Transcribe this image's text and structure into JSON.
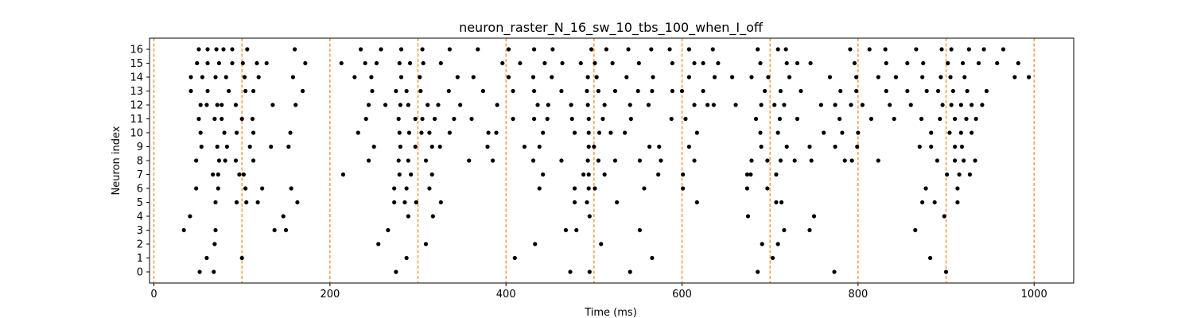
{
  "chart_data": {
    "type": "scatter",
    "title": "neuron_raster_N_16_sw_10_tbs_100_when_I_off",
    "xlabel": "Time (ms)",
    "ylabel": "Neuron index",
    "xlim": [
      -5,
      1045
    ],
    "ylim": [
      -0.8,
      16.8
    ],
    "xticks": [
      0,
      200,
      400,
      600,
      800,
      1000
    ],
    "yticks": [
      0,
      1,
      2,
      3,
      4,
      5,
      6,
      7,
      8,
      9,
      10,
      11,
      12,
      13,
      14,
      15,
      16
    ],
    "grid": false,
    "legend": "none",
    "marker_color": "#000000",
    "vline_color": "#ff7f0e",
    "vlines": [
      0,
      100,
      200,
      300,
      400,
      500,
      600,
      700,
      800,
      900,
      1000
    ],
    "series": [
      {
        "neuron": 0,
        "times": [
          52,
          68,
          275,
          473,
          495,
          541,
          686,
          773,
          900
        ]
      },
      {
        "neuron": 1,
        "times": [
          60,
          100,
          287,
          410,
          566,
          703,
          882
        ]
      },
      {
        "neuron": 2,
        "times": [
          69,
          255,
          309,
          433,
          508,
          691,
          709
        ]
      },
      {
        "neuron": 3,
        "times": [
          34,
          70,
          137,
          150,
          266,
          468,
          480,
          552,
          716,
          745,
          865
        ]
      },
      {
        "neuron": 4,
        "times": [
          41,
          147,
          289,
          317,
          495,
          675,
          750,
          898
        ]
      },
      {
        "neuron": 5,
        "times": [
          70,
          94,
          105,
          118,
          163,
          273,
          285,
          298,
          326,
          478,
          492,
          526,
          617,
          707,
          713,
          873,
          887,
          913
        ]
      },
      {
        "neuron": 6,
        "times": [
          48,
          73,
          104,
          123,
          156,
          273,
          287,
          313,
          438,
          478,
          494,
          501,
          557,
          601,
          674,
          697,
          877,
          913
        ]
      },
      {
        "neuron": 7,
        "times": [
          67,
          73,
          97,
          102,
          215,
          279,
          292,
          316,
          442,
          488,
          494,
          512,
          573,
          601,
          674,
          678,
          707,
          901,
          915,
          927
        ]
      },
      {
        "neuron": 8,
        "times": [
          48,
          74,
          81,
          93,
          113,
          244,
          278,
          289,
          309,
          358,
          385,
          431,
          463,
          493,
          505,
          524,
          552,
          576,
          614,
          679,
          697,
          712,
          728,
          747,
          785,
          793,
          823,
          890,
          910,
          920,
          933
        ]
      },
      {
        "neuron": 9,
        "times": [
          54,
          72,
          83,
          109,
          133,
          153,
          250,
          280,
          297,
          316,
          325,
          379,
          421,
          438,
          494,
          500,
          563,
          574,
          608,
          690,
          719,
          745,
          774,
          799,
          870,
          883,
          910,
          918
        ]
      },
      {
        "neuron": 10,
        "times": [
          53,
          80,
          94,
          113,
          155,
          232,
          279,
          290,
          304,
          313,
          336,
          380,
          389,
          442,
          478,
          494,
          506,
          519,
          535,
          617,
          689,
          709,
          761,
          782,
          800,
          883,
          904,
          917,
          929
        ]
      },
      {
        "neuron": 11,
        "times": [
          51,
          69,
          77,
          100,
          112,
          241,
          278,
          297,
          305,
          319,
          341,
          361,
          408,
          432,
          447,
          475,
          494,
          510,
          542,
          588,
          604,
          684,
          711,
          731,
          779,
          815,
          841,
          872,
          893,
          910,
          923,
          934
        ]
      },
      {
        "neuron": 12,
        "times": [
          53,
          60,
          72,
          77,
          93,
          135,
          161,
          244,
          263,
          280,
          289,
          311,
          323,
          348,
          390,
          436,
          448,
          474,
          493,
          512,
          541,
          562,
          614,
          629,
          636,
          661,
          690,
          705,
          716,
          758,
          774,
          792,
          805,
          836,
          860,
          896,
          906,
          917,
          929,
          941
        ]
      },
      {
        "neuron": 13,
        "times": [
          42,
          61,
          85,
          104,
          113,
          169,
          248,
          275,
          287,
          303,
          335,
          374,
          408,
          432,
          463,
          492,
          505,
          524,
          550,
          566,
          589,
          600,
          624,
          694,
          712,
          735,
          780,
          798,
          832,
          856,
          878,
          891,
          908,
          924,
          946
        ]
      },
      {
        "neuron": 14,
        "times": [
          42,
          55,
          70,
          82,
          103,
          119,
          158,
          228,
          247,
          281,
          302,
          345,
          363,
          403,
          431,
          452,
          493,
          503,
          537,
          567,
          608,
          637,
          657,
          679,
          698,
          722,
          768,
          798,
          823,
          843,
          873,
          894,
          905,
          921,
          978,
          994
        ]
      },
      {
        "neuron": 15,
        "times": [
          49,
          61,
          74,
          89,
          101,
          117,
          128,
          172,
          213,
          240,
          253,
          279,
          291,
          306,
          326,
          396,
          416,
          444,
          464,
          485,
          501,
          521,
          551,
          589,
          614,
          624,
          641,
          689,
          719,
          731,
          746,
          796,
          832,
          856,
          874,
          902,
          919,
          937,
          958,
          982
        ]
      },
      {
        "neuron": 16,
        "times": [
          51,
          61,
          71,
          79,
          89,
          106,
          160,
          235,
          258,
          281,
          305,
          336,
          368,
          403,
          432,
          453,
          497,
          514,
          539,
          565,
          586,
          608,
          635,
          686,
          709,
          718,
          791,
          813,
          831,
          866,
          895,
          906,
          926,
          943,
          965
        ]
      }
    ]
  }
}
